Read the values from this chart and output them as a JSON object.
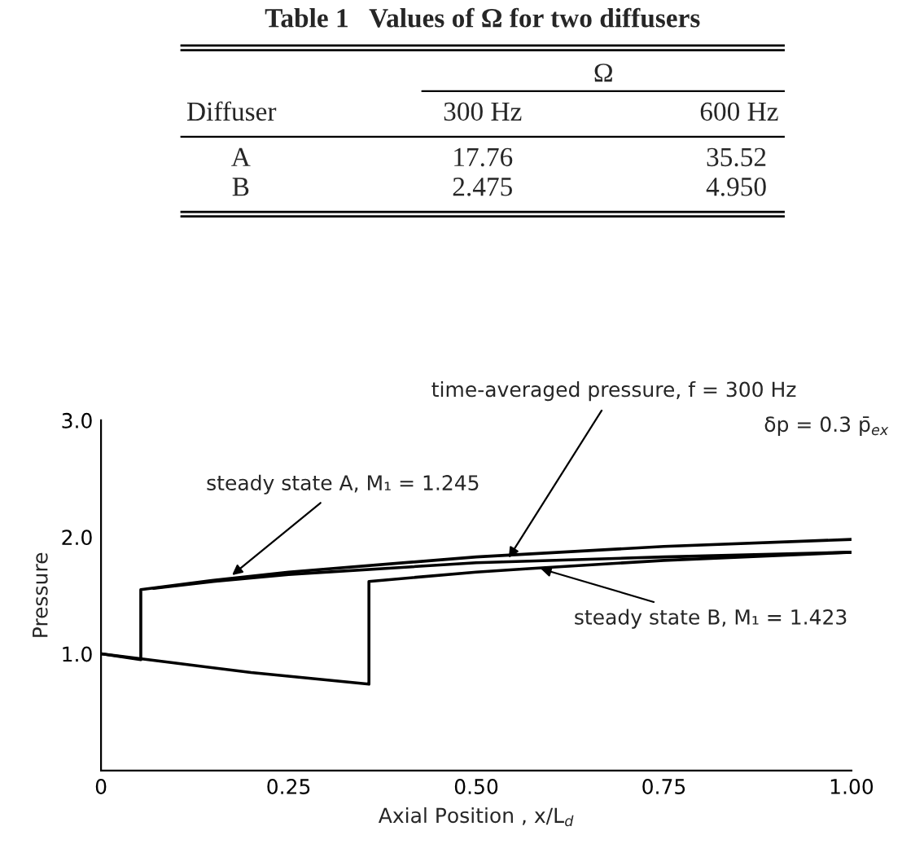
{
  "chart_data": [
    {
      "type": "other",
      "title": "Table 1   Values of Ω for two diffusers",
      "annotations": [
        "Ω",
        "Diffuser",
        "300 Hz",
        "600 Hz",
        "A",
        "17.76",
        "35.52",
        "B",
        "2.475",
        "4.950"
      ]
    },
    {
      "type": "line",
      "xlabel": "Axial Position , x/L$_{d}$",
      "ylabel": "Pressure",
      "xlim": [
        0,
        1
      ],
      "ylim": [
        0,
        3
      ],
      "xticks": [
        0,
        {
          "value": 0.25,
          "label": "0.25"
        },
        {
          "value": 0.5,
          "label": "0.50"
        },
        {
          "value": 0.75,
          "label": "0.75"
        },
        {
          "value": 1,
          "label": "1.00"
        }
      ],
      "yticks": [
        {
          "value": 1,
          "label": "1.0"
        },
        {
          "value": 2,
          "label": "2.0"
        },
        {
          "value": 3,
          "label": "3.0"
        }
      ],
      "grid": false,
      "legend": false,
      "marker": "none",
      "line_style": "solid",
      "series": [
        {
          "color": "#000000",
          "x": [
            0,
            0.053,
            0.053,
            0.15,
            0.25,
            0.5,
            0.75,
            1.0
          ],
          "values": [
            1.0,
            0.95,
            1.55,
            1.63,
            1.7,
            1.83,
            1.92,
            1.98
          ]
        },
        {
          "color": "#000000",
          "x": [
            0.07,
            0.15,
            0.25,
            0.5,
            0.75,
            1.0
          ],
          "values": [
            1.56,
            1.62,
            1.68,
            1.78,
            1.83,
            1.87
          ]
        },
        {
          "color": "#000000",
          "x": [
            0,
            0.1,
            0.2,
            0.357,
            0.357,
            0.5,
            0.57,
            0.75,
            1.0
          ],
          "values": [
            1.0,
            0.92,
            0.84,
            0.74,
            1.62,
            1.7,
            1.73,
            1.8,
            1.87
          ]
        }
      ],
      "annotations": [
        {
          "text": "time-averaged pressure, f = 300 Hz",
          "x": 0.54,
          "y": 1.79
        },
        "δp = 0.3 p̄$_{ex}$",
        {
          "text": "steady state A, M₁ = 1.245",
          "x": 0.17,
          "y": 1.65
        },
        {
          "text": "steady state B, M₁ = 1.423",
          "x": 0.58,
          "y": 1.74
        }
      ]
    }
  ]
}
